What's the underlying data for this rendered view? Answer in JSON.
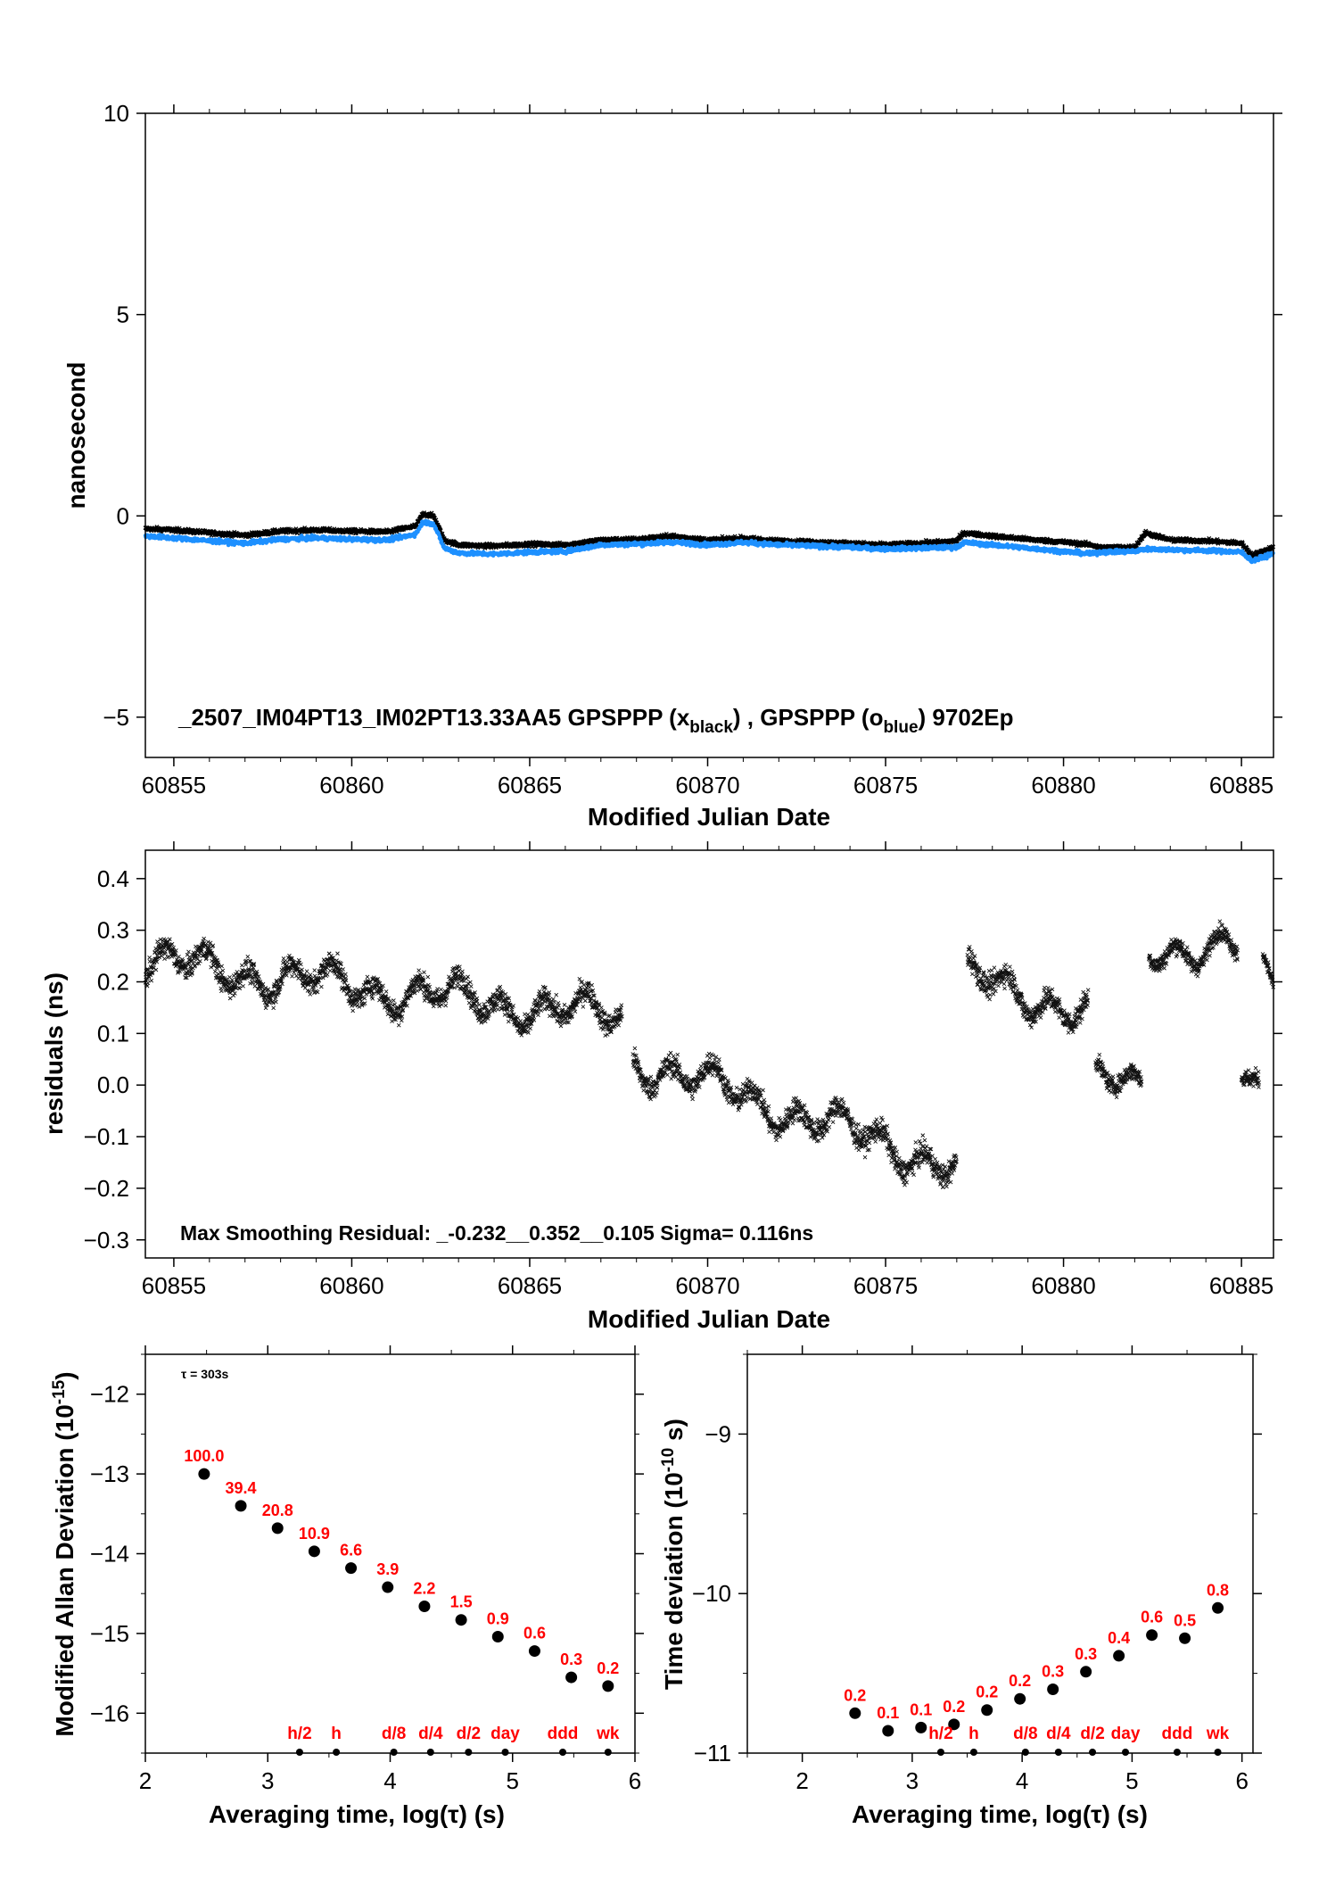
{
  "chart_data": [
    {
      "id": "top",
      "type": "scatter",
      "xlabel": "Modified Julian Date",
      "ylabel": "nanosecond",
      "xlim": [
        60854.2,
        60885.9
      ],
      "ylim": [
        -6,
        10
      ],
      "x_ticks": [
        60855,
        60860,
        60865,
        60870,
        60875,
        60880,
        60885
      ],
      "y_ticks": [
        -5,
        0,
        5,
        10
      ],
      "y_tick_labels": [
        "−5",
        "0",
        "5",
        "10"
      ],
      "annotation": {
        "part1": "_2507_IM04PT13_IM02PT13.33AA5     GPSPPP (x",
        "sub1": "black",
        "part2": ") ,  GPSPPP (o",
        "sub2": "blue",
        "part3": ")  9702Ep"
      },
      "series": [
        {
          "name": "GPSPPP (x black)",
          "color": "#000000",
          "marker": "x",
          "x": [
            60854.2,
            60855,
            60856,
            60857,
            60858,
            60859,
            60860,
            60861,
            60861.8,
            60862.0,
            60862.3,
            60862.6,
            60863,
            60864,
            60865,
            60866,
            60867,
            60868,
            60869,
            60870,
            60871,
            60872,
            60873,
            60874,
            60875,
            60876,
            60877,
            60877.2,
            60878,
            60879,
            60880,
            60880.8,
            60881,
            60882,
            60882.3,
            60883,
            60884,
            60885,
            60885.3,
            60885.9
          ],
          "y": [
            -0.32,
            -0.35,
            -0.42,
            -0.48,
            -0.38,
            -0.35,
            -0.38,
            -0.4,
            -0.25,
            0.05,
            0.0,
            -0.6,
            -0.72,
            -0.75,
            -0.7,
            -0.72,
            -0.6,
            -0.58,
            -0.5,
            -0.6,
            -0.55,
            -0.62,
            -0.65,
            -0.68,
            -0.72,
            -0.68,
            -0.62,
            -0.42,
            -0.5,
            -0.58,
            -0.65,
            -0.72,
            -0.78,
            -0.78,
            -0.42,
            -0.6,
            -0.62,
            -0.68,
            -0.98,
            -0.78
          ]
        },
        {
          "name": "GPSPPP (o blue)",
          "color": "#1e90ff",
          "marker": "o",
          "x": [
            60854.2,
            60855,
            60856,
            60857,
            60858,
            60859,
            60860,
            60861,
            60861.8,
            60862.0,
            60862.3,
            60862.6,
            60863,
            60864,
            60865,
            60866,
            60867,
            60868,
            60869,
            60870,
            60871,
            60872,
            60873,
            60874,
            60875,
            60876,
            60877,
            60877.2,
            60878,
            60879,
            60880,
            60880.8,
            60881,
            60882,
            60882.3,
            60883,
            60884,
            60885,
            60885.3,
            60885.9
          ],
          "y": [
            -0.5,
            -0.55,
            -0.62,
            -0.68,
            -0.58,
            -0.55,
            -0.58,
            -0.6,
            -0.45,
            -0.15,
            -0.2,
            -0.8,
            -0.92,
            -0.95,
            -0.9,
            -0.88,
            -0.72,
            -0.7,
            -0.65,
            -0.72,
            -0.66,
            -0.72,
            -0.75,
            -0.78,
            -0.82,
            -0.8,
            -0.78,
            -0.66,
            -0.72,
            -0.8,
            -0.88,
            -0.95,
            -0.9,
            -0.88,
            -0.82,
            -0.84,
            -0.86,
            -0.9,
            -1.12,
            -0.94
          ]
        }
      ]
    },
    {
      "id": "residuals",
      "type": "scatter",
      "xlabel": "Modified Julian Date",
      "ylabel": "residuals (ns)",
      "xlim": [
        60854.2,
        60885.9
      ],
      "ylim": [
        -0.335,
        0.455
      ],
      "x_ticks": [
        60855,
        60860,
        60865,
        60870,
        60875,
        60880,
        60885
      ],
      "y_ticks": [
        -0.3,
        -0.2,
        -0.1,
        0.0,
        0.1,
        0.2,
        0.3,
        0.4
      ],
      "y_tick_labels": [
        "−0.3",
        "−0.2",
        "−0.1",
        "0.0",
        "0.1",
        "0.2",
        "0.3",
        "0.4"
      ],
      "annotation": "Max Smoothing Residual: _-0.232__0.352__0.105  Sigma= 0.116ns",
      "segments": [
        {
          "x0": 60854.2,
          "x1": 60867.6,
          "y0": 0.24,
          "y1": 0.13,
          "noise": 0.04
        },
        {
          "x0": 60867.9,
          "x1": 60877.0,
          "y0": 0.05,
          "y1": -0.16,
          "noise": 0.04
        },
        {
          "x0": 60877.3,
          "x1": 60880.7,
          "y0": 0.21,
          "y1": 0.14,
          "noise": 0.04
        },
        {
          "x0": 60880.9,
          "x1": 60882.2,
          "y0": 0.01,
          "y1": -0.01,
          "noise": 0.03
        },
        {
          "x0": 60882.4,
          "x1": 60884.9,
          "y0": 0.27,
          "y1": 0.26,
          "noise": 0.03
        },
        {
          "x0": 60885.0,
          "x1": 60885.5,
          "y0": 0.02,
          "y1": -0.03,
          "noise": 0.03
        },
        {
          "x0": 60885.6,
          "x1": 60885.9,
          "y0": 0.22,
          "y1": 0.2,
          "noise": 0.02
        }
      ]
    },
    {
      "id": "mdev",
      "type": "scatter",
      "xlabel": "Averaging time, log(τ) (s)",
      "ylabel": "Modified Allan Deviation (10",
      "ylabel_sup": "-15",
      "ylabel_end": ")",
      "xlim": [
        2,
        6
      ],
      "ylim": [
        -16.5,
        -11.5
      ],
      "x_ticks": [
        2,
        3,
        4,
        5,
        6
      ],
      "y_ticks": [
        -16,
        -15,
        -14,
        -13,
        -12
      ],
      "y_tick_labels": [
        "−16",
        "−15",
        "−14",
        "−13",
        "−12"
      ],
      "annotation": "τ = 303s",
      "x": [
        2.48,
        2.78,
        3.08,
        3.38,
        3.68,
        3.98,
        4.28,
        4.58,
        4.88,
        5.18,
        5.48,
        5.78
      ],
      "y": [
        -13.0,
        -13.4,
        -13.68,
        -13.97,
        -14.18,
        -14.42,
        -14.66,
        -14.83,
        -15.04,
        -15.22,
        -15.55,
        -15.66
      ],
      "labels": [
        "100.0",
        "39.4",
        "20.8",
        "10.9",
        "6.6",
        "3.9",
        "2.2",
        "1.5",
        "0.9",
        "0.6",
        "0.3",
        "0.2"
      ],
      "markers": {
        "labels": [
          "h/2",
          "h",
          "d/8",
          "d/4",
          "d/2",
          "day",
          "ddd",
          "wk"
        ],
        "x": [
          3.26,
          3.56,
          4.03,
          4.33,
          4.64,
          4.94,
          5.41,
          5.78
        ]
      }
    },
    {
      "id": "tdev",
      "type": "scatter",
      "xlabel": "Averaging time, log(τ) (s)",
      "ylabel": "Time deviation (10",
      "ylabel_sup": "-10",
      "ylabel_end": " s)",
      "xlim": [
        1.5,
        6.1
      ],
      "ylim": [
        -11.0,
        -8.5
      ],
      "x_ticks": [
        2,
        3,
        4,
        5,
        6
      ],
      "y_ticks": [
        -11,
        -10,
        -9
      ],
      "y_tick_labels": [
        "−11",
        "−10",
        "−9"
      ],
      "x": [
        2.48,
        2.78,
        3.08,
        3.38,
        3.68,
        3.98,
        4.28,
        4.58,
        4.88,
        5.18,
        5.48,
        5.78
      ],
      "y": [
        -10.75,
        -10.86,
        -10.84,
        -10.82,
        -10.73,
        -10.66,
        -10.6,
        -10.49,
        -10.39,
        -10.26,
        -10.28,
        -10.09
      ],
      "labels": [
        "0.2",
        "0.1",
        "0.1",
        "0.2",
        "0.2",
        "0.2",
        "0.3",
        "0.3",
        "0.4",
        "0.6",
        "0.5",
        "0.8"
      ],
      "markers": {
        "labels": [
          "h/2",
          "h",
          "d/8",
          "d/4",
          "d/2",
          "day",
          "ddd",
          "wk"
        ],
        "x": [
          3.26,
          3.56,
          4.03,
          4.33,
          4.64,
          4.94,
          5.41,
          5.78
        ]
      }
    }
  ]
}
